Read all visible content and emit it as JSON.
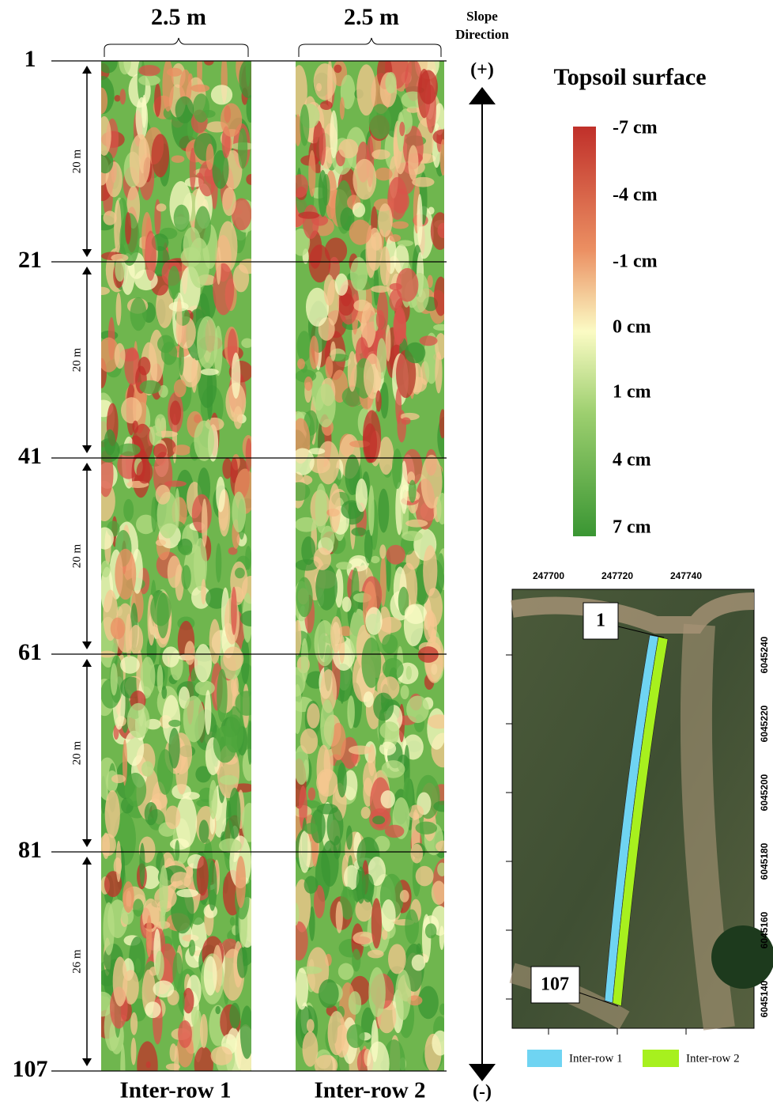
{
  "header": {
    "widths": [
      "2.5 m",
      "2.5 m"
    ],
    "slope_direction": [
      "Slope",
      "Direction"
    ]
  },
  "profile": {
    "row_markers": [
      "1",
      "21",
      "41",
      "61",
      "81",
      "107"
    ],
    "segment_lengths": [
      "20 m",
      "20 m",
      "20 m",
      "20 m",
      "26 m"
    ],
    "columns": [
      "Inter-row 1",
      "Inter-row 2"
    ],
    "direction_top": "(+)",
    "direction_bottom": "(-)"
  },
  "legend": {
    "title": "Topsoil surface",
    "labels": [
      "-7 cm",
      "-4 cm",
      "-1 cm",
      "0 cm",
      "1 cm",
      "4 cm",
      "7 cm"
    ]
  },
  "map": {
    "x_ticks": [
      "247700",
      "247720",
      "247740"
    ],
    "y_ticks": [
      "6045240",
      "6045220",
      "6045200",
      "6045180",
      "6045160",
      "6045140"
    ],
    "callouts": [
      "1",
      "107"
    ],
    "legend": [
      "Inter-row 1",
      "Inter-row 2"
    ]
  }
}
